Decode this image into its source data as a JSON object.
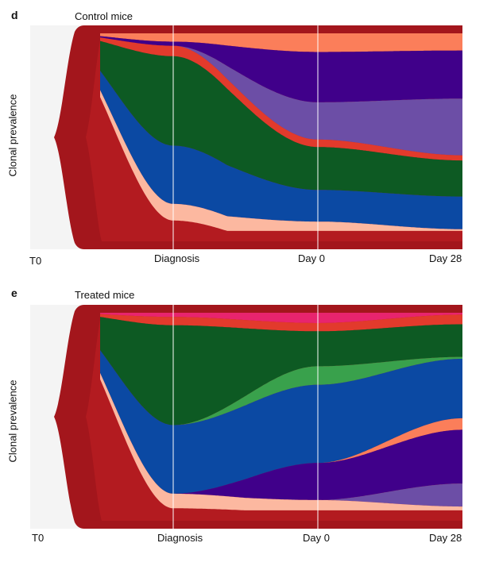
{
  "panels": [
    {
      "label": "d",
      "title": "Control mice",
      "ylabel": "Clonal prevalence",
      "ticks": [
        "T0",
        "Diagnosis",
        "Day 0",
        "Day 28"
      ]
    },
    {
      "label": "e",
      "title": "Treated mice",
      "ylabel": "Clonal prevalence",
      "ticks": [
        "T0",
        "Diagnosis",
        "Day 0",
        "Day 28"
      ]
    }
  ],
  "colors": {
    "background": "#f4f4f4",
    "dark_red": "#a3161c",
    "mid_red": "#b81d22",
    "red": "#e23a2c",
    "salmon": "#fb7e5a",
    "light_salmon": "#fcb8a0",
    "pale": "#fdd9c9",
    "green": "#0d5a23",
    "light_green": "#39a14c",
    "blue": "#0b49a3",
    "purple": "#40008a",
    "lavender": "#6c4ea6",
    "pink": "#e8246e",
    "guide": "#ffffff"
  },
  "chart_data": [
    {
      "type": "area",
      "title": "Control mice",
      "ylabel": "Clonal prevalence",
      "x": [
        "T0",
        "Diagnosis",
        "Day 0",
        "Day 28"
      ],
      "series": [
        {
          "color": "salmon",
          "values": [
            0.0,
            0.04,
            0.1,
            0.1
          ]
        },
        {
          "color": "purple",
          "values": [
            0.0,
            0.02,
            0.27,
            0.28
          ]
        },
        {
          "color": "lavender",
          "values": [
            0.0,
            0.0,
            0.2,
            0.33
          ]
        },
        {
          "color": "red",
          "values": [
            0.0,
            0.05,
            0.04,
            0.03
          ]
        },
        {
          "color": "green",
          "values": [
            0.0,
            0.43,
            0.23,
            0.21
          ]
        },
        {
          "color": "blue",
          "values": [
            0.0,
            0.28,
            0.17,
            0.19
          ]
        },
        {
          "color": "light_salmon",
          "values": [
            0.01,
            0.08,
            0.05,
            0.01
          ]
        }
      ]
    },
    {
      "type": "area",
      "title": "Treated mice",
      "ylabel": "Clonal prevalence",
      "x": [
        "T0",
        "Diagnosis",
        "Day 0",
        "Day 28"
      ],
      "series": [
        {
          "color": "pink",
          "values": [
            0.0,
            0.02,
            0.05,
            0.01
          ]
        },
        {
          "color": "red",
          "values": [
            0.0,
            0.04,
            0.04,
            0.05
          ]
        },
        {
          "color": "green",
          "values": [
            0.0,
            0.48,
            0.17,
            0.17
          ]
        },
        {
          "color": "light_green",
          "values": [
            0.0,
            0.0,
            0.09,
            0.01
          ]
        },
        {
          "color": "blue",
          "values": [
            0.0,
            0.33,
            0.38,
            0.31
          ]
        },
        {
          "color": "salmon",
          "values": [
            0.0,
            0.0,
            0.0,
            0.06
          ]
        },
        {
          "color": "purple",
          "values": [
            0.0,
            0.0,
            0.18,
            0.28
          ]
        },
        {
          "color": "lavender",
          "values": [
            0.0,
            0.0,
            0.0,
            0.12
          ]
        },
        {
          "color": "light_salmon",
          "values": [
            0.01,
            0.07,
            0.05,
            0.02
          ]
        }
      ]
    }
  ]
}
